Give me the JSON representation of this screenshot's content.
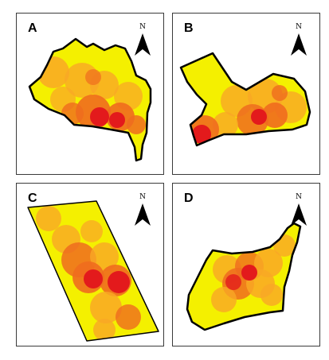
{
  "panels": [
    {
      "label": "A"
    },
    {
      "label": "B"
    },
    {
      "label": "C"
    },
    {
      "label": "D"
    }
  ],
  "north_arrow_label": "N",
  "colors": {
    "low": "#f4f000",
    "mid": "#f9a825",
    "high": "#ef6c1e",
    "peak": "#e31a1c",
    "outline": "#000000"
  }
}
